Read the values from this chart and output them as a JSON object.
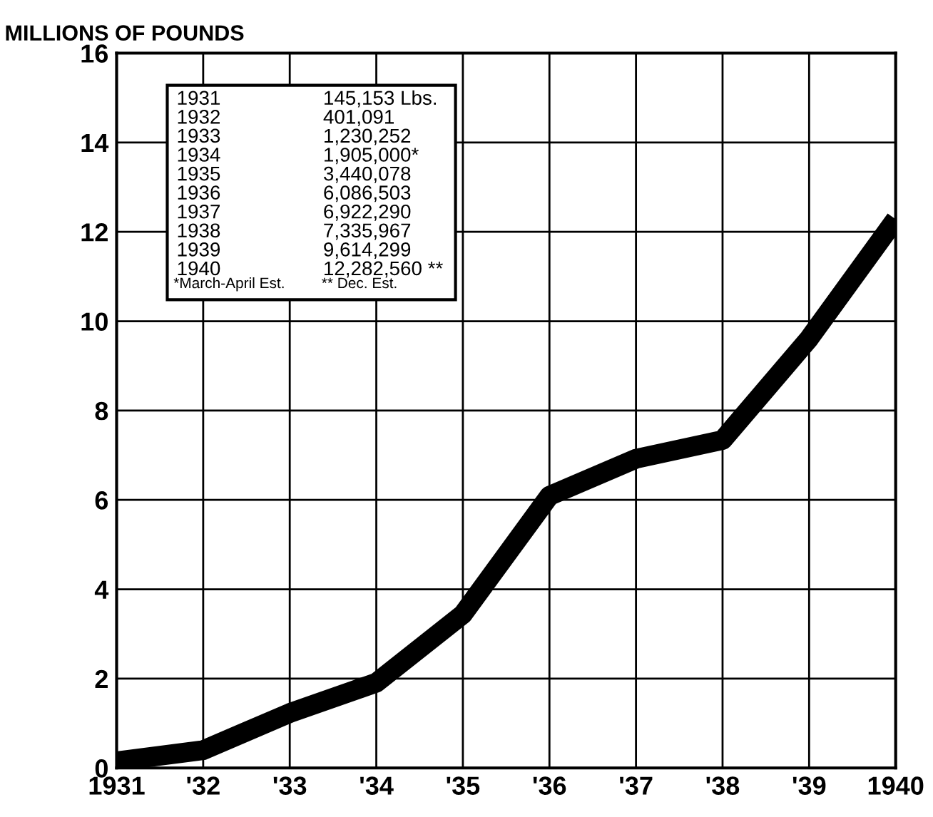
{
  "chart_data": {
    "type": "line",
    "ylabel": "MILLIONS OF POUNDS",
    "x": [
      1931,
      1932,
      1933,
      1934,
      1935,
      1936,
      1937,
      1938,
      1939,
      1940
    ],
    "values": [
      0.15,
      0.4,
      1.23,
      1.91,
      3.44,
      6.09,
      6.92,
      7.34,
      9.61,
      12.28
    ],
    "color": "#000000",
    "line_style": "solid",
    "marker": "none",
    "xlim": [
      1931,
      1940
    ],
    "xticks": [
      1931,
      {
        "value": 1932,
        "label": "'32"
      },
      {
        "value": 1933,
        "label": "'33"
      },
      {
        "value": 1934,
        "label": "'34"
      },
      {
        "value": 1935,
        "label": "'35"
      },
      {
        "value": 1936,
        "label": "'36"
      },
      {
        "value": 1937,
        "label": "'37"
      },
      {
        "value": 1938,
        "label": "'38"
      },
      {
        "value": 1939,
        "label": "'39"
      },
      1940
    ],
    "ylim": [
      0,
      16
    ],
    "yticks": [
      0,
      2,
      4,
      6,
      8,
      10,
      12,
      14,
      16
    ],
    "grid": true,
    "annotations": [
      "1931",
      "145,153 Lbs.",
      "1932",
      "401,091",
      "1933",
      "1,230,252",
      "1934",
      "1,905,000*",
      "1935",
      "3,440,078",
      "1936",
      "6,086,503",
      "1937",
      "6,922,290",
      "1938",
      "7,335,967",
      "1939",
      "9,614,299",
      "1940",
      "12,282,560 **",
      "*March-April Est.",
      "** Dec. Est."
    ]
  }
}
